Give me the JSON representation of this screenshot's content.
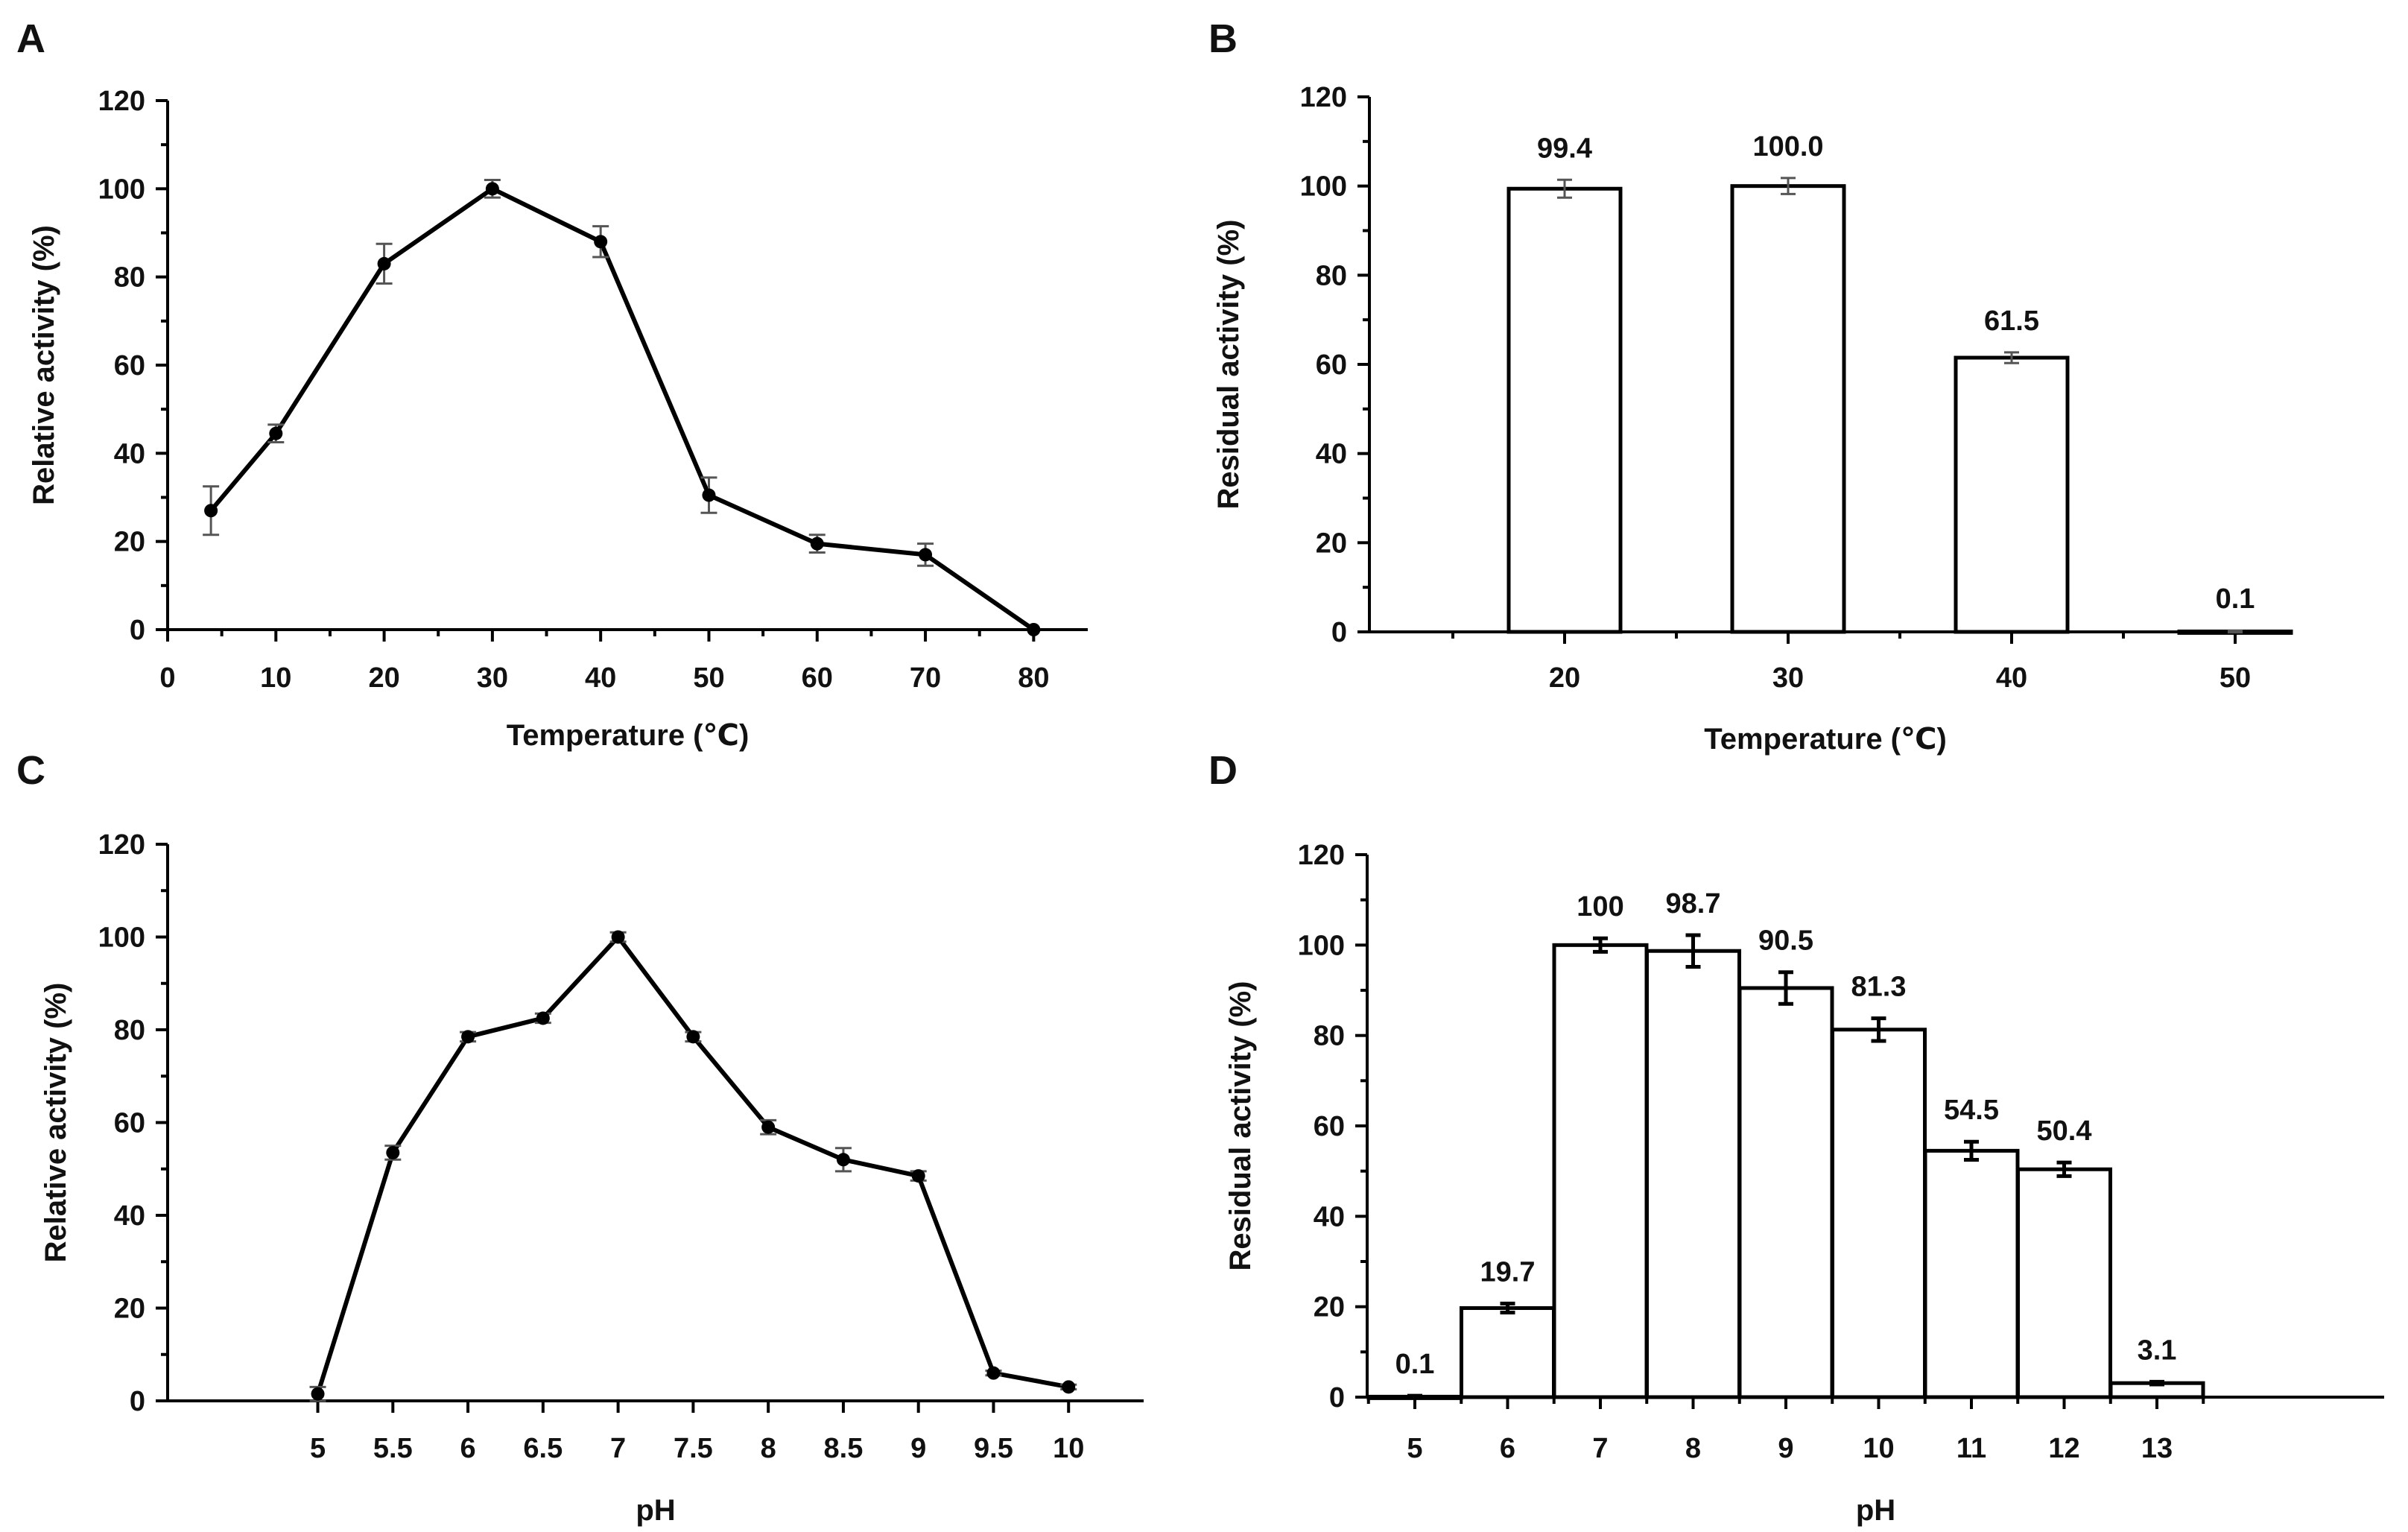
{
  "chart_data": [
    {
      "panel": "A",
      "type": "line",
      "xlabel": "Temperature (℃)",
      "ylabel": "Relative activity (%)",
      "xlim": [
        0,
        85
      ],
      "ylim": [
        0,
        120
      ],
      "xticks": [
        0,
        10,
        20,
        30,
        40,
        50,
        60,
        70,
        80
      ],
      "yticks": [
        0,
        20,
        40,
        60,
        80,
        100,
        120
      ],
      "series": [
        {
          "x": [
            4,
            10,
            20,
            30,
            40,
            50,
            60,
            70,
            80
          ],
          "y": [
            27,
            44.5,
            83,
            100,
            88,
            30.5,
            19.5,
            17,
            0
          ],
          "err": [
            5.5,
            2,
            4.5,
            2,
            3.5,
            4,
            2,
            2.5,
            0
          ]
        }
      ],
      "grid": false
    },
    {
      "panel": "B",
      "type": "bar",
      "xlabel": "Temperature (℃)",
      "ylabel": "Residual activity (%)",
      "categories": [
        "20",
        "30",
        "40",
        "50"
      ],
      "values": [
        99.4,
        100.0,
        61.5,
        0.1
      ],
      "value_labels": [
        "99.4",
        "100.0",
        "61.5",
        "0.1"
      ],
      "err": [
        2,
        1.8,
        1.2,
        0.2
      ],
      "ylim": [
        0,
        120
      ],
      "yticks": [
        0,
        20,
        40,
        60,
        80,
        100,
        120
      ],
      "grid": false
    },
    {
      "panel": "C",
      "type": "line",
      "xlabel": "pH",
      "ylabel": "Relative activity (%)",
      "xlim": [
        4,
        10.5
      ],
      "ylim": [
        0,
        120
      ],
      "xticks": [
        "5",
        "5.5",
        "6",
        "6.5",
        "7",
        "7.5",
        "8",
        "8.5",
        "9",
        "9.5",
        "10"
      ],
      "yticks": [
        0,
        20,
        40,
        60,
        80,
        100,
        120
      ],
      "series": [
        {
          "x": [
            5,
            5.5,
            6,
            6.5,
            7,
            7.5,
            8,
            8.5,
            9,
            9.5,
            10
          ],
          "y": [
            1.5,
            53.5,
            78.5,
            82.5,
            100,
            78.5,
            59,
            52,
            48.5,
            6,
            3
          ],
          "err": [
            1.5,
            1.5,
            1,
            1,
            1,
            1,
            1.5,
            2.5,
            1,
            0.5,
            0.5
          ]
        }
      ],
      "grid": false
    },
    {
      "panel": "D",
      "type": "bar",
      "xlabel": "pH",
      "ylabel": "Residual activity (%)",
      "categories": [
        "5",
        "6",
        "7",
        "8",
        "9",
        "10",
        "11",
        "12",
        "13"
      ],
      "values": [
        0.1,
        19.7,
        100,
        98.7,
        90.5,
        81.3,
        54.5,
        50.4,
        3.1
      ],
      "value_labels": [
        "0.1",
        "19.7",
        "100",
        "98.7",
        "90.5",
        "81.3",
        "54.5",
        "50.4",
        "3.1"
      ],
      "err": [
        0.2,
        1,
        1.5,
        3.5,
        3.5,
        2.5,
        2,
        1.5,
        0.3
      ],
      "ylim": [
        0,
        120
      ],
      "yticks": [
        0,
        20,
        40,
        60,
        80,
        100,
        120
      ],
      "grid": false
    }
  ]
}
